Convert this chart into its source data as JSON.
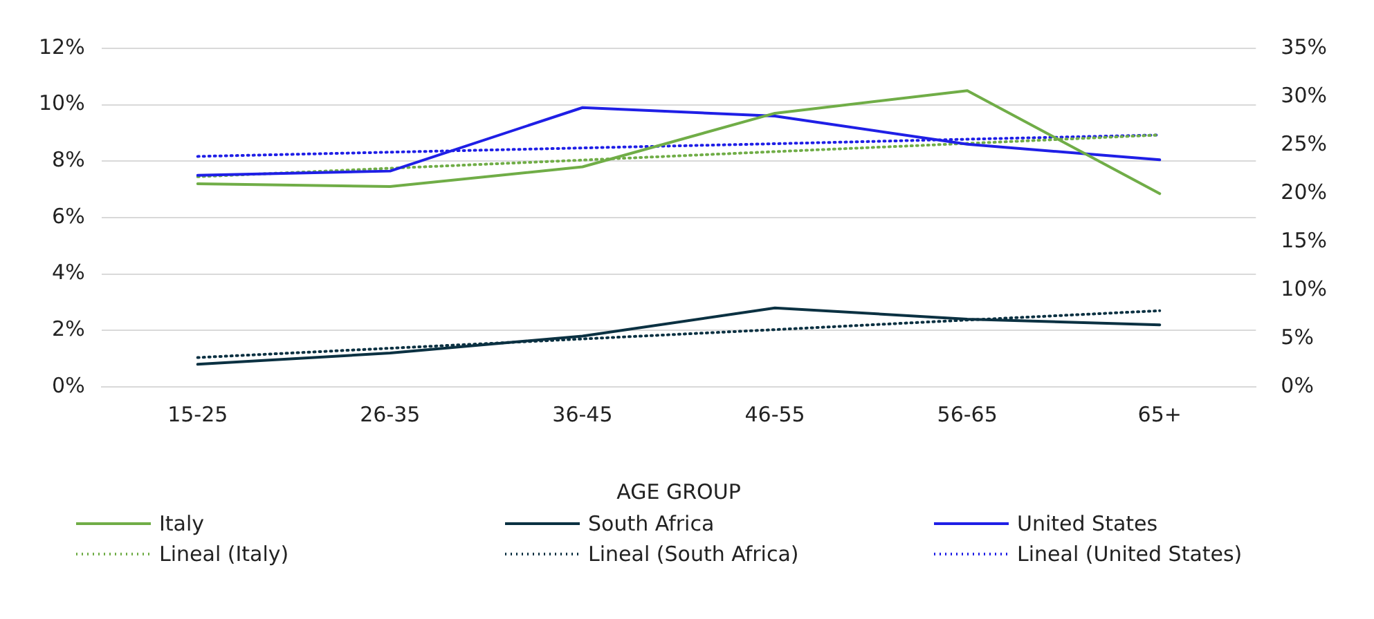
{
  "chart_data": {
    "type": "line",
    "xlabel": "AGE GROUP",
    "categories": [
      "15-25",
      "26-35",
      "36-45",
      "46-55",
      "56-65",
      "65+"
    ],
    "series": [
      {
        "name": "Italy",
        "color": "#70ad47",
        "line_style": "solid",
        "values": [
          7.2,
          7.1,
          7.8,
          9.7,
          10.5,
          6.85
        ]
      },
      {
        "name": "South Africa",
        "color": "#0b3142",
        "line_style": "solid",
        "values": [
          0.8,
          1.2,
          1.8,
          2.8,
          2.4,
          2.2
        ]
      },
      {
        "name": "United States",
        "color": "#1f1fe6",
        "line_style": "solid",
        "values": [
          7.5,
          7.65,
          9.9,
          9.6,
          8.6,
          8.05
        ]
      },
      {
        "name": "Lineal (Italy)",
        "color": "#70ad47",
        "line_style": "dotted",
        "values": [
          7.45,
          7.75,
          8.04,
          8.34,
          8.63,
          8.93
        ]
      },
      {
        "name": "Lineal (South Africa)",
        "color": "#0b3142",
        "line_style": "dotted",
        "values": [
          1.04,
          1.37,
          1.7,
          2.03,
          2.37,
          2.7
        ]
      },
      {
        "name": "Lineal (United States)",
        "color": "#1f1fe6",
        "line_style": "dotted",
        "values": [
          8.17,
          8.32,
          8.47,
          8.62,
          8.78,
          8.93
        ]
      }
    ],
    "ylim": [
      0,
      12
    ],
    "yticks": [
      {
        "value": 0,
        "label": "0%"
      },
      {
        "value": 2,
        "label": "2%"
      },
      {
        "value": 4,
        "label": "4%"
      },
      {
        "value": 6,
        "label": "6%"
      },
      {
        "value": 8,
        "label": "8%"
      },
      {
        "value": 10,
        "label": "10%"
      },
      {
        "value": 12,
        "label": "12%"
      }
    ],
    "y2lim": [
      0,
      35
    ],
    "y2ticks": [
      {
        "value": 0,
        "label": "0%"
      },
      {
        "value": 5,
        "label": "5%"
      },
      {
        "value": 10,
        "label": "10%"
      },
      {
        "value": 15,
        "label": "15%"
      },
      {
        "value": 20,
        "label": "20%"
      },
      {
        "value": 25,
        "label": "25%"
      },
      {
        "value": 30,
        "label": "30%"
      },
      {
        "value": 35,
        "label": "35%"
      }
    ],
    "grid": "y",
    "legend": "bottom",
    "marker": "none"
  }
}
